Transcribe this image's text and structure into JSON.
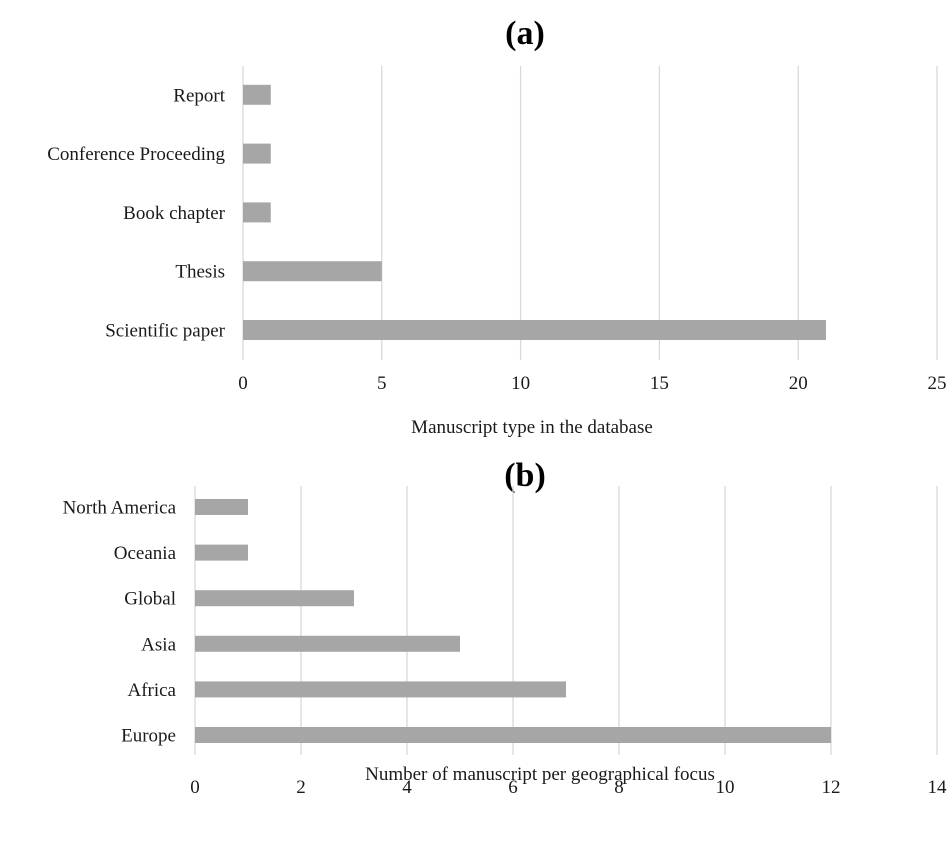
{
  "chart_data": [
    {
      "type": "bar",
      "orientation": "horizontal",
      "title": "(a)",
      "categories": [
        "Scientific paper",
        "Thesis",
        "Book chapter",
        "Conference Proceeding",
        "Report"
      ],
      "values": [
        21,
        5,
        1,
        1,
        1
      ],
      "xlabel": "Manuscript  type  in the database",
      "xlim": [
        0,
        25
      ],
      "xticks": [
        0,
        5,
        10,
        15,
        20,
        25
      ],
      "grid": "vertical",
      "bar_color": "#a6a6a6"
    },
    {
      "type": "bar",
      "orientation": "horizontal",
      "title": "(b)",
      "categories": [
        "Europe",
        "Africa",
        "Asia",
        "Global",
        "Oceania",
        "North America"
      ],
      "values": [
        12,
        7,
        5,
        3,
        1,
        1
      ],
      "xlabel": "Number  of manuscript  per geographical  focus",
      "xlim": [
        0,
        14
      ],
      "xticks": [
        0,
        2,
        4,
        6,
        8,
        10,
        12,
        14
      ],
      "grid": "vertical",
      "bar_color": "#a6a6a6"
    }
  ]
}
